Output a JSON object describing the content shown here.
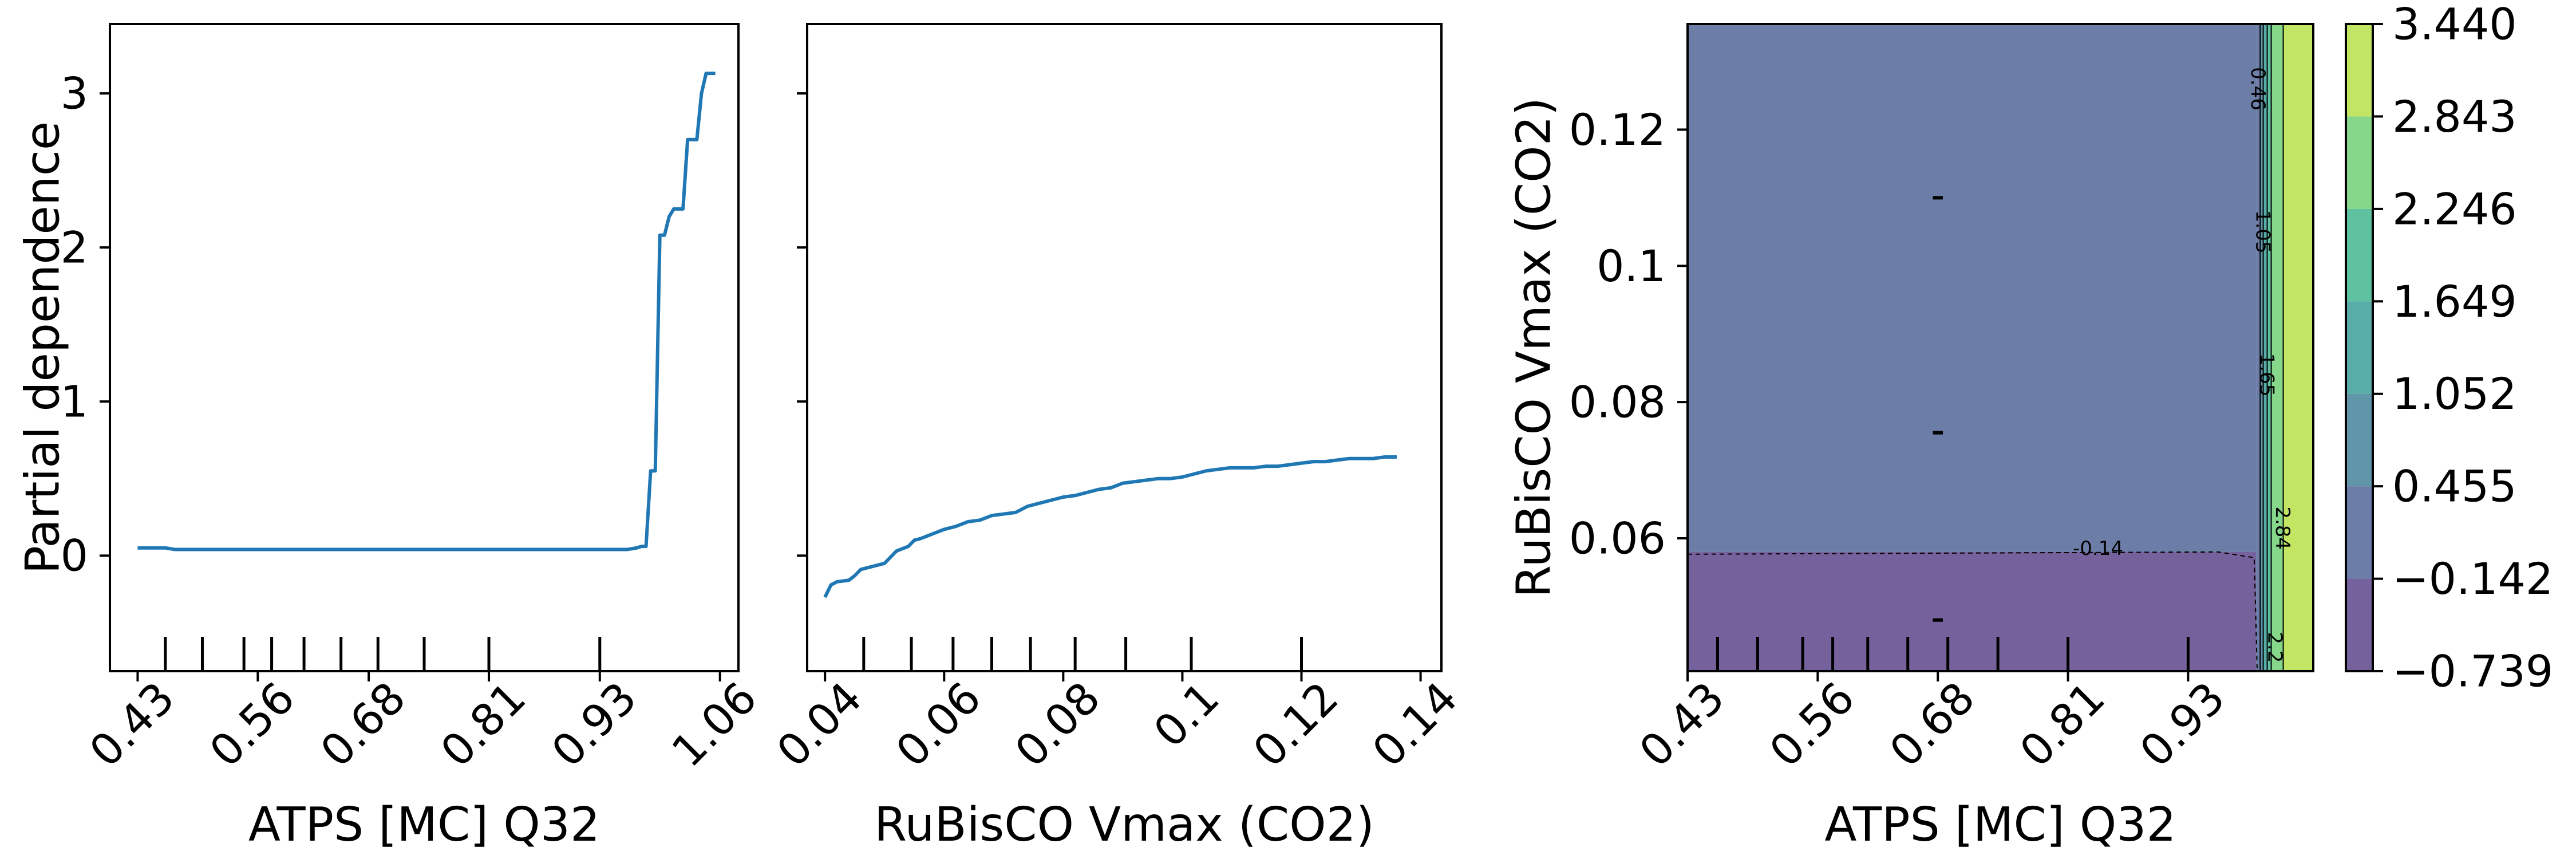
{
  "chart_data": [
    {
      "type": "line",
      "xlabel": "ATPS [MC] Q32",
      "ylabel": "Partial dependence",
      "xlim": [
        0.4,
        1.08
      ],
      "ylim": [
        -0.75,
        3.45
      ],
      "xticks": [
        0.43,
        0.56,
        0.68,
        0.81,
        0.93,
        1.06
      ],
      "xtick_labels": [
        "0.43",
        "0.56",
        "0.68",
        "0.81",
        "0.93",
        "1.06"
      ],
      "yticks": [
        0,
        1,
        2,
        3
      ],
      "ytick_labels": [
        "0",
        "1",
        "2",
        "3"
      ],
      "line_color": "#1f77b4",
      "x": [
        0.43,
        0.46,
        0.47,
        0.55,
        0.65,
        0.75,
        0.85,
        0.93,
        0.96,
        0.97,
        0.975,
        0.98,
        0.985,
        0.99,
        0.995,
        1.0,
        1.005,
        1.01,
        1.02,
        1.025,
        1.03,
        1.035,
        1.04,
        1.045,
        1.05,
        1.055
      ],
      "y": [
        0.05,
        0.05,
        0.04,
        0.04,
        0.04,
        0.04,
        0.04,
        0.04,
        0.04,
        0.05,
        0.06,
        0.06,
        0.55,
        0.55,
        2.08,
        2.08,
        2.2,
        2.25,
        2.25,
        2.7,
        2.7,
        2.7,
        3.0,
        3.13,
        3.13,
        3.13
      ],
      "rug_x": [
        0.46,
        0.5,
        0.545,
        0.575,
        0.61,
        0.65,
        0.69,
        0.74,
        0.81,
        0.93
      ]
    },
    {
      "type": "line",
      "xlabel": "RuBisCO Vmax (CO2)",
      "ylabel": "",
      "xlim": [
        0.037,
        0.1435
      ],
      "ylim": [
        -0.75,
        3.45
      ],
      "xticks": [
        0.04,
        0.06,
        0.08,
        0.1,
        0.12,
        0.14
      ],
      "xtick_labels": [
        "0.04",
        "0.06",
        "0.08",
        "0.1",
        "0.12",
        "0.14"
      ],
      "yticks": [
        0,
        1,
        2,
        3
      ],
      "line_color": "#1f77b4",
      "x": [
        0.04,
        0.041,
        0.042,
        0.044,
        0.045,
        0.046,
        0.048,
        0.05,
        0.052,
        0.054,
        0.055,
        0.056,
        0.058,
        0.06,
        0.062,
        0.064,
        0.066,
        0.068,
        0.07,
        0.072,
        0.074,
        0.076,
        0.078,
        0.08,
        0.082,
        0.084,
        0.086,
        0.088,
        0.09,
        0.092,
        0.094,
        0.096,
        0.098,
        0.1,
        0.102,
        0.104,
        0.106,
        0.108,
        0.11,
        0.112,
        0.114,
        0.116,
        0.118,
        0.12,
        0.122,
        0.124,
        0.126,
        0.128,
        0.13,
        0.132,
        0.134,
        0.136
      ],
      "y": [
        -0.27,
        -0.19,
        -0.17,
        -0.16,
        -0.13,
        -0.09,
        -0.07,
        -0.05,
        0.03,
        0.06,
        0.1,
        0.11,
        0.14,
        0.17,
        0.19,
        0.22,
        0.23,
        0.26,
        0.27,
        0.28,
        0.32,
        0.34,
        0.36,
        0.38,
        0.39,
        0.41,
        0.43,
        0.44,
        0.47,
        0.48,
        0.49,
        0.5,
        0.5,
        0.51,
        0.53,
        0.55,
        0.56,
        0.57,
        0.57,
        0.57,
        0.58,
        0.58,
        0.59,
        0.6,
        0.61,
        0.61,
        0.62,
        0.63,
        0.63,
        0.63,
        0.64,
        0.64
      ],
      "rug_x": [
        0.0465,
        0.0545,
        0.0615,
        0.068,
        0.0745,
        0.082,
        0.0905,
        0.1015,
        0.12
      ]
    },
    {
      "type": "heatmap",
      "subtype": "contour",
      "xlabel": "ATPS [MC] Q32",
      "ylabel": "RuBisCO Vmax (CO2)",
      "xlim": [
        0.43,
        1.055
      ],
      "ylim": [
        0.0405,
        0.1355
      ],
      "xticks": [
        0.43,
        0.56,
        0.68,
        0.81,
        0.93
      ],
      "xtick_labels": [
        "0.43",
        "0.56",
        "0.68",
        "0.81",
        "0.93"
      ],
      "yticks": [
        0.06,
        0.08,
        0.1,
        0.12
      ],
      "ytick_labels": [
        "0.06",
        "0.08",
        "0.1",
        "0.12"
      ],
      "fill_levels": [
        {
          "from": -0.739,
          "to": -0.142,
          "color": "#472d7b"
        },
        {
          "from": -0.142,
          "to": 0.455,
          "color": "#3b528b"
        },
        {
          "from": 0.455,
          "to": 1.052,
          "color": "#2c728e"
        },
        {
          "from": 1.052,
          "to": 1.649,
          "color": "#21918c"
        },
        {
          "from": 1.649,
          "to": 2.246,
          "color": "#28ae80"
        },
        {
          "from": 2.246,
          "to": 2.843,
          "color": "#5ec962"
        },
        {
          "from": 2.843,
          "to": 3.44,
          "color": "#addc30"
        }
      ],
      "regions": [
        {
          "x0": 0.43,
          "x1": 0.998,
          "y0": 0.0405,
          "y1": 0.058,
          "level": 0
        },
        {
          "x0": 0.43,
          "x1": 0.998,
          "y0": 0.058,
          "y1": 0.1355,
          "level": 1
        },
        {
          "x0": 0.998,
          "x1": 1.002,
          "y0": 0.0405,
          "y1": 0.1355,
          "level": 1
        },
        {
          "x0": 1.002,
          "x1": 1.005,
          "y0": 0.0405,
          "y1": 0.1355,
          "level": 2
        },
        {
          "x0": 1.005,
          "x1": 1.009,
          "y0": 0.0405,
          "y1": 0.1355,
          "level": 3
        },
        {
          "x0": 1.009,
          "x1": 1.013,
          "y0": 0.0405,
          "y1": 0.1355,
          "level": 4
        },
        {
          "x0": 1.013,
          "x1": 1.025,
          "y0": 0.0405,
          "y1": 0.1355,
          "level": 5
        },
        {
          "x0": 1.025,
          "x1": 1.055,
          "y0": 0.0405,
          "y1": 0.1355,
          "level": 6
        }
      ],
      "contour_labels": [
        {
          "text": "-0.14",
          "x": 0.84,
          "y": 0.0585
        },
        {
          "text": "0.46",
          "x": 0.9995,
          "y": 0.126
        },
        {
          "text": "1.05",
          "x": 1.0045,
          "y": 0.105
        },
        {
          "text": "1.65",
          "x": 1.0085,
          "y": 0.084
        },
        {
          "text": "2.84",
          "x": 1.024,
          "y": 0.0615
        },
        {
          "text": "2.2",
          "x": 1.0165,
          "y": 0.044
        }
      ],
      "rug_x": [
        0.46,
        0.5,
        0.545,
        0.575,
        0.61,
        0.65,
        0.69,
        0.74,
        0.81,
        0.93
      ],
      "rug_y": [
        0.048,
        0.0755,
        0.11
      ],
      "colorbar": {
        "ticks": [
          -0.739,
          -0.142,
          0.455,
          1.052,
          1.649,
          2.246,
          2.843,
          3.44
        ],
        "tick_labels": [
          "−0.739",
          "−0.142",
          "0.455",
          "1.052",
          "1.649",
          "2.246",
          "2.843",
          "3.440"
        ]
      },
      "alpha": 0.75
    }
  ]
}
